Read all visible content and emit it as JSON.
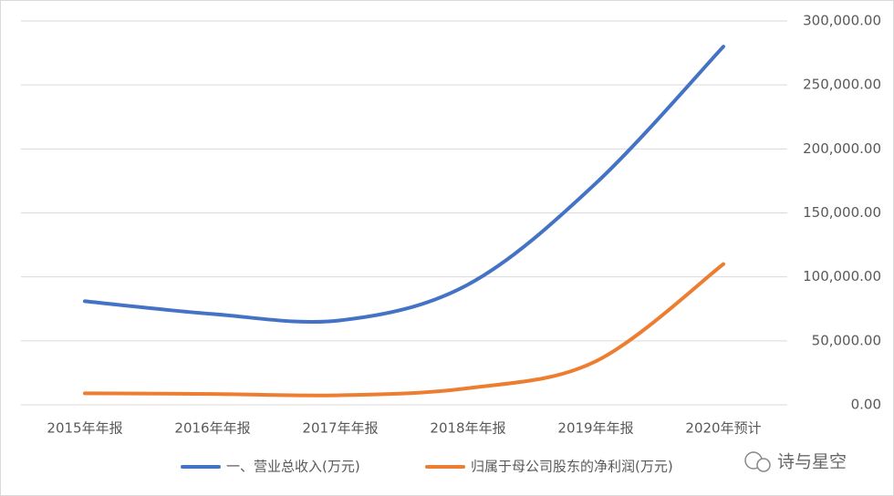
{
  "chart_data": {
    "type": "line",
    "categories": [
      "2015年年报",
      "2016年年报",
      "2017年年报",
      "2018年年报",
      "2019年年报",
      "2020年预计"
    ],
    "series": [
      {
        "name": "一、营业总收入(万元)",
        "color": "#4472c4",
        "values": [
          81000,
          71000,
          66000,
          94000,
          173000,
          280000
        ]
      },
      {
        "name": "归属于母公司股东的净利润(万元)",
        "color": "#ed7d31",
        "values": [
          9000,
          8500,
          7500,
          13000,
          34000,
          110000
        ]
      }
    ],
    "ylim": [
      0,
      300000
    ],
    "yticks": [
      {
        "value": 0,
        "label": "0.00"
      },
      {
        "value": 50000,
        "label": "50,000.00"
      },
      {
        "value": 100000,
        "label": "100,000.00"
      },
      {
        "value": 150000,
        "label": "150,000.00"
      },
      {
        "value": 200000,
        "label": "200,000.00"
      },
      {
        "value": 250000,
        "label": "250,000.00"
      },
      {
        "value": 300000,
        "label": "300,000.00"
      }
    ],
    "grid": true,
    "legend": "bottom",
    "watermark": "诗与星空"
  }
}
